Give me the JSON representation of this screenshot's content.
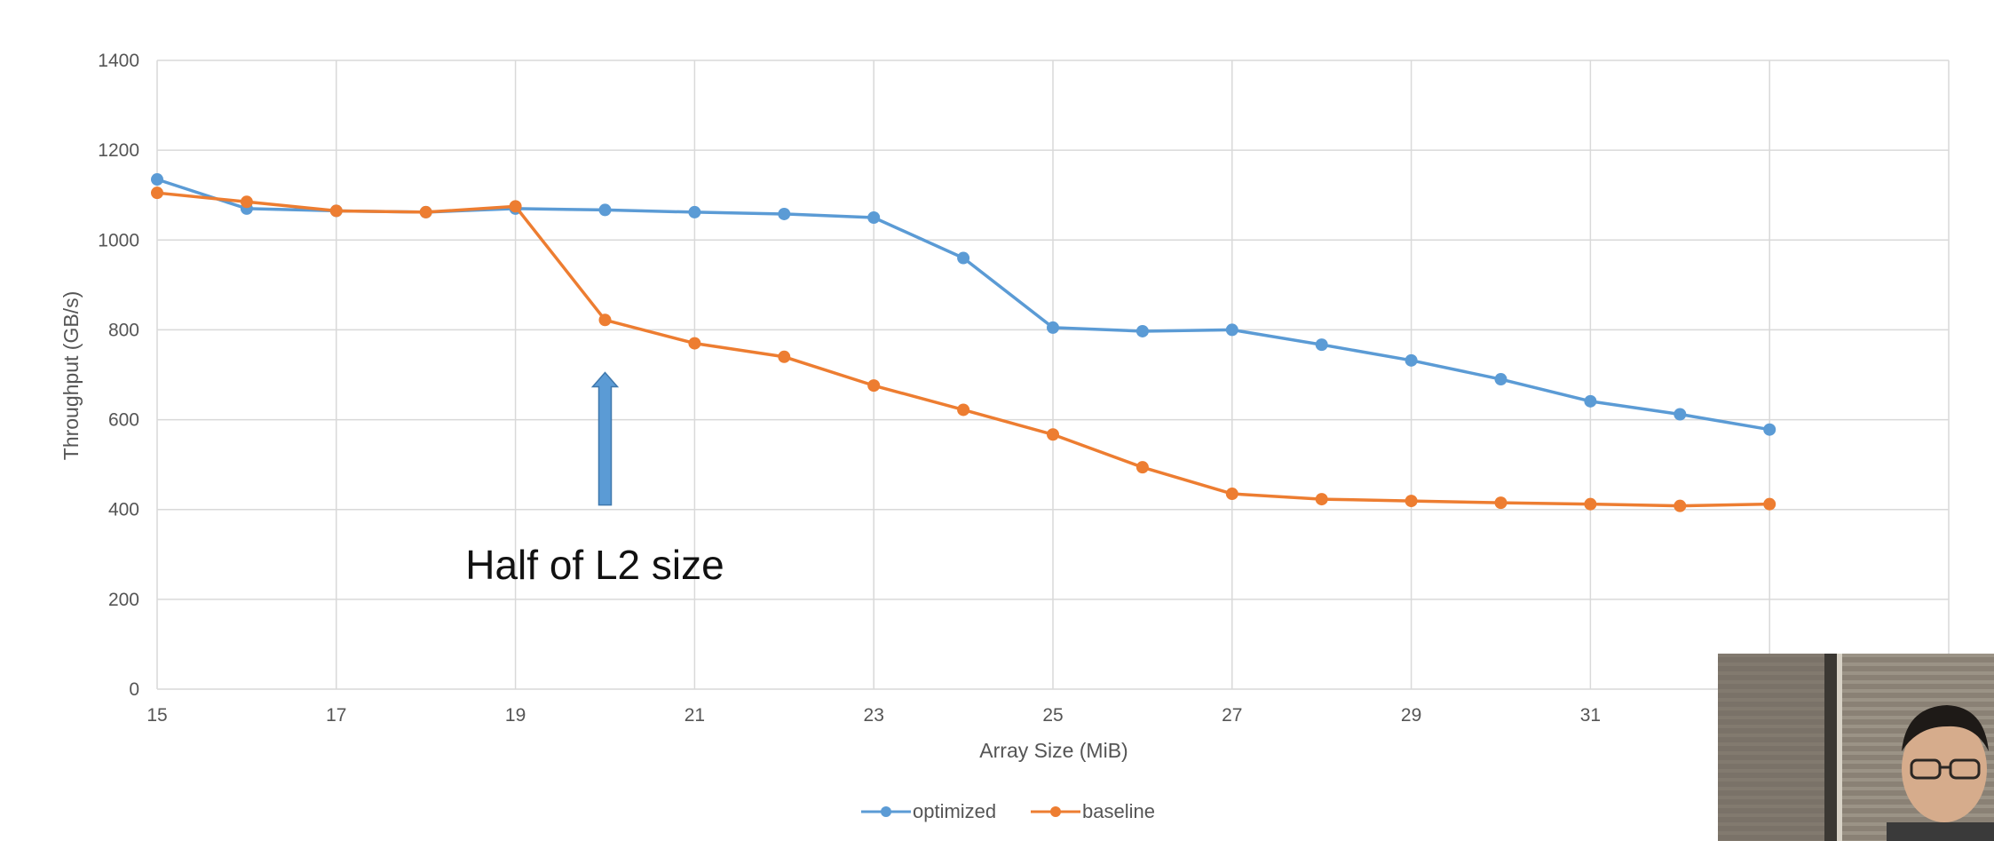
{
  "chart_data": {
    "type": "line",
    "title": "",
    "xlabel": "Array Size (MiB)",
    "ylabel": "Throughput (GB/s)",
    "x": [
      15,
      16,
      17,
      18,
      19,
      20,
      21,
      22,
      23,
      24,
      25,
      26,
      27,
      28,
      29,
      30,
      31,
      32,
      33
    ],
    "x_tick_labels": [
      "15",
      "17",
      "19",
      "21",
      "23",
      "25",
      "27",
      "29",
      "31"
    ],
    "xlim": [
      15,
      35
    ],
    "ylim": [
      0,
      1400
    ],
    "y_ticks": [
      "0",
      "200",
      "400",
      "600",
      "800",
      "1000",
      "1200",
      "1400"
    ],
    "grid": true,
    "legend_position": "bottom-center",
    "series": [
      {
        "name": "optimized",
        "color": "#5b9bd5",
        "values": [
          1135,
          1070,
          1065,
          1062,
          1070,
          1067,
          1062,
          1058,
          1050,
          960,
          805,
          797,
          800,
          767,
          732,
          690,
          641,
          612,
          578
        ]
      },
      {
        "name": "baseline",
        "color": "#ed7d31",
        "values": [
          1105,
          1085,
          1065,
          1062,
          1075,
          822,
          770,
          740,
          676,
          622,
          567,
          494,
          435,
          423,
          419,
          415,
          412,
          408,
          412
        ]
      }
    ],
    "annotation": {
      "text": "Half of L2 size",
      "arrow_x": 20,
      "arrow_from": 410,
      "arrow_to": 705,
      "color": "#5b9bd5"
    }
  },
  "webcam": {
    "label": "presenter-video"
  }
}
